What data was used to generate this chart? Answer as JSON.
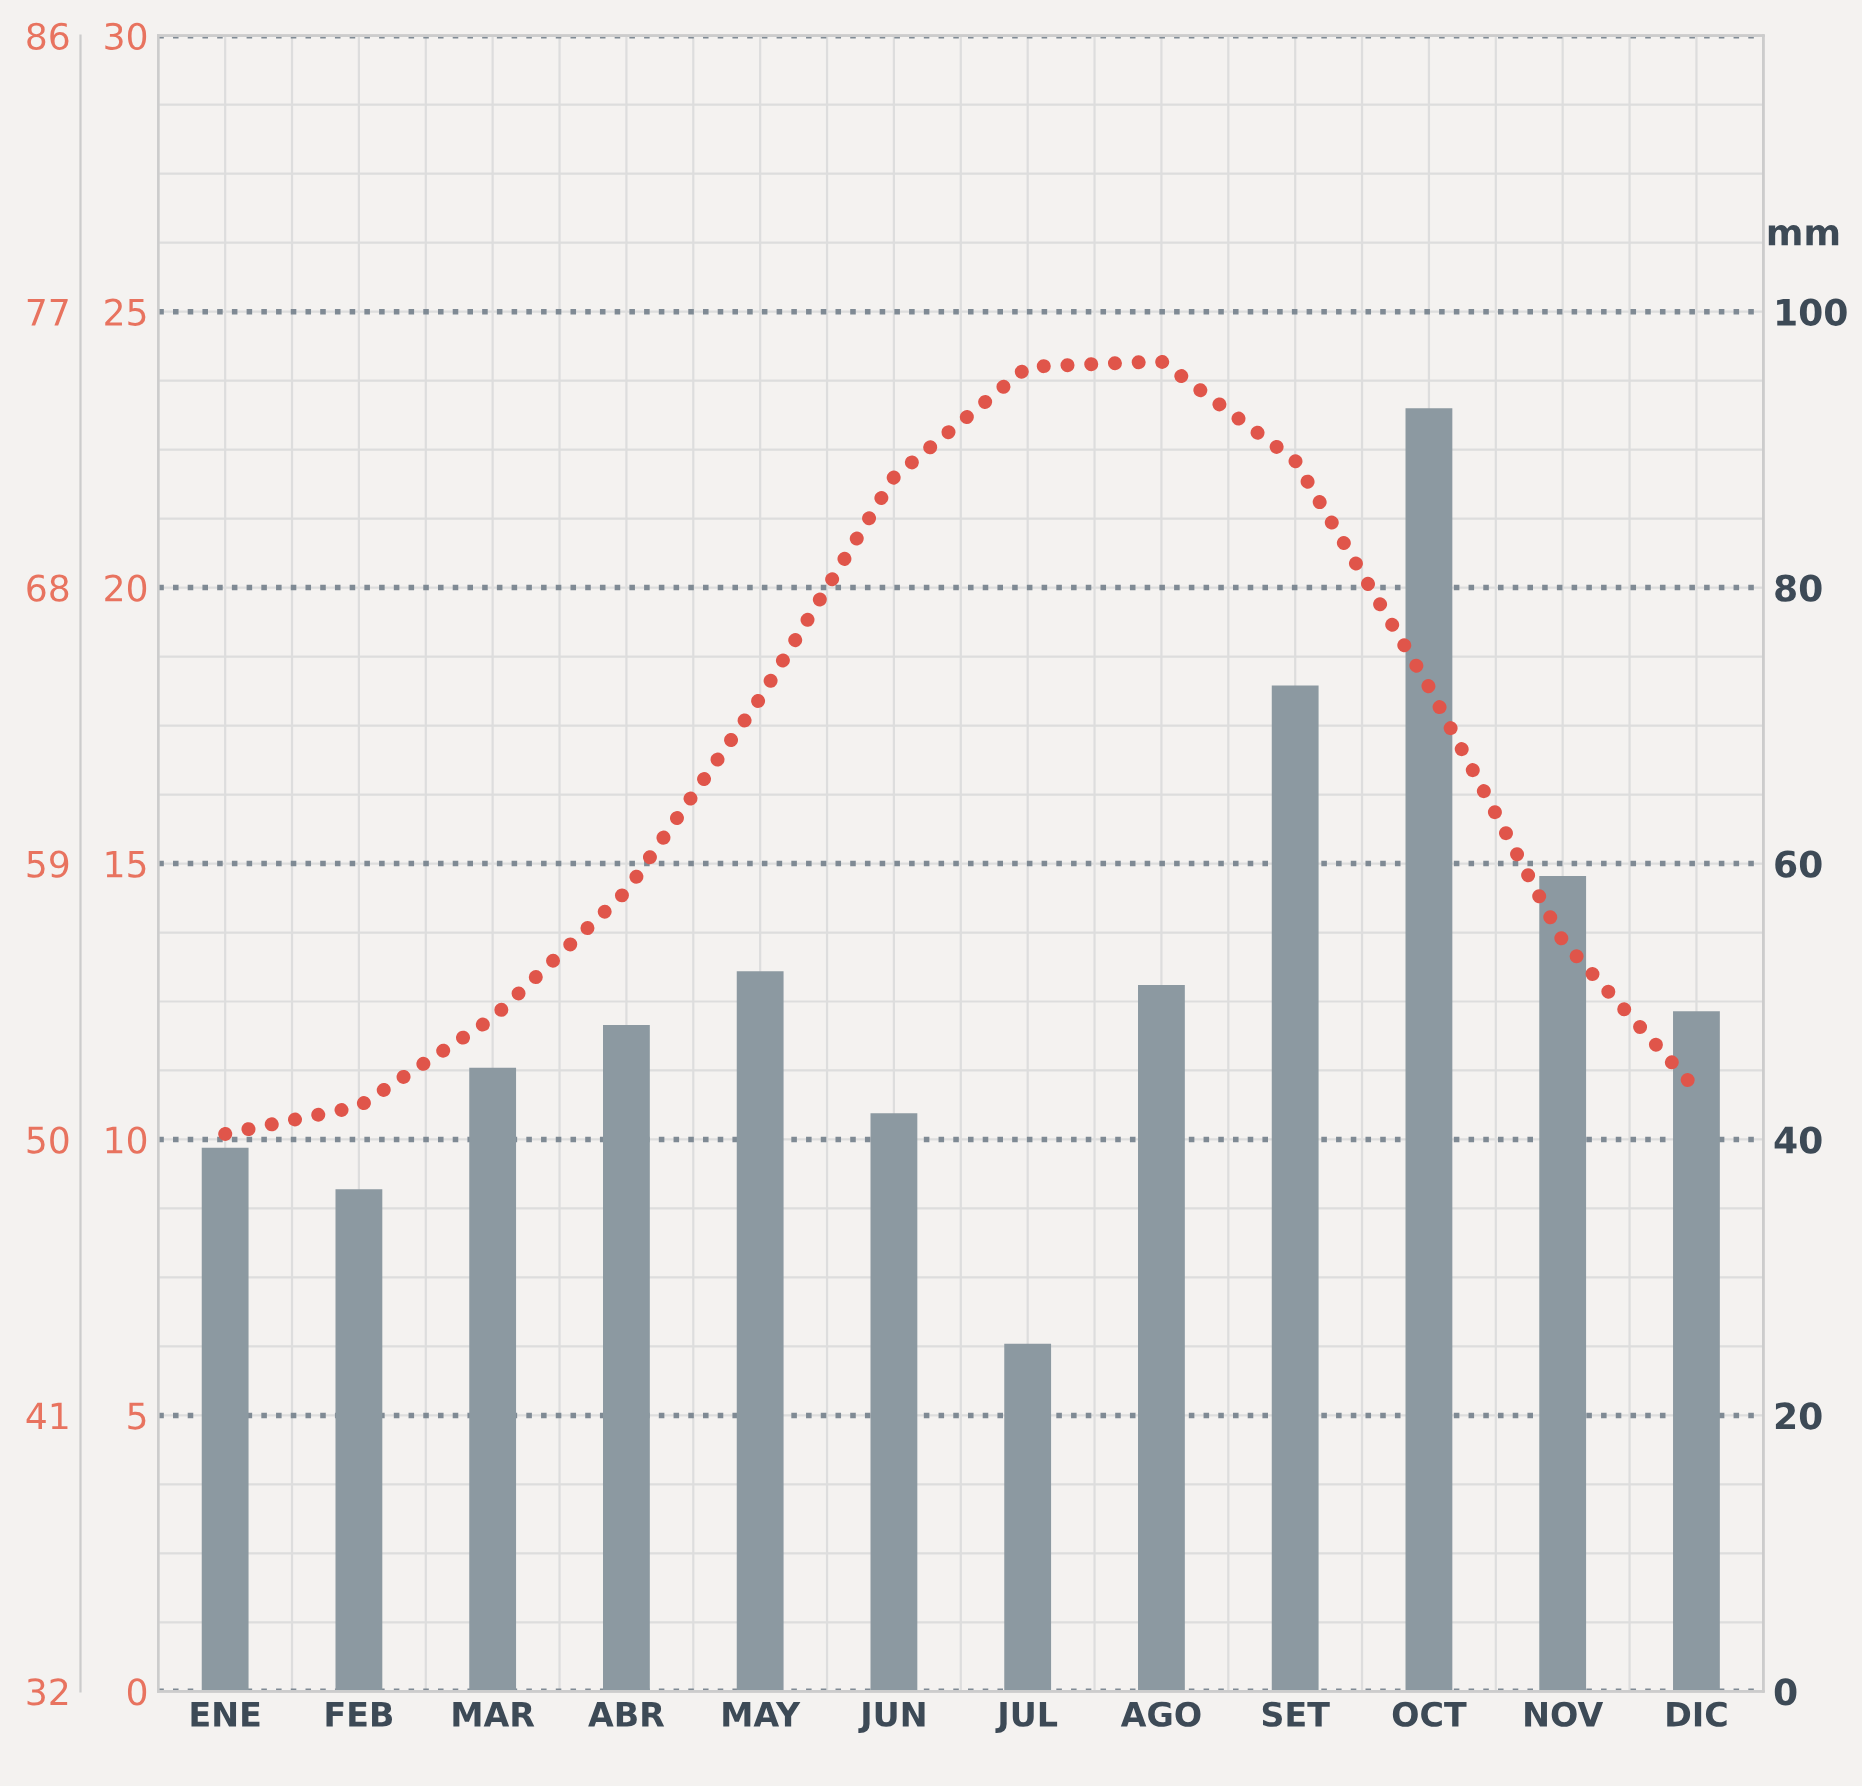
{
  "chart_data": {
    "type": "bar",
    "categories": [
      "ENE",
      "FEB",
      "MAR",
      "ABR",
      "MAY",
      "JUN",
      "JUL",
      "AGO",
      "SET",
      "OCT",
      "NOV",
      "DIC"
    ],
    "series": [
      {
        "axis": "y2",
        "color": "#8c99a1",
        "values": [
          39.4,
          36.4,
          45.2,
          48.3,
          52.2,
          41.9,
          25.2,
          51.2,
          72.9,
          93.0,
          59.1,
          49.3
        ]
      },
      {
        "type": "line",
        "axis": "y",
        "color": "#e0554a",
        "line_style": "dotted",
        "values": [
          10.1,
          10.6,
          12.2,
          14.5,
          18.0,
          22.0,
          24.0,
          24.1,
          22.3,
          18.2,
          13.6,
          10.9
        ]
      }
    ],
    "ylim": [
      0,
      30
    ],
    "yticks": [
      0,
      5,
      10,
      15,
      20,
      25,
      30
    ],
    "y3lim": [
      32,
      86
    ],
    "y3ticks": [
      32,
      41,
      50,
      59,
      68,
      77,
      86
    ],
    "y2lim": [
      0,
      120
    ],
    "y2ticks": [
      0,
      20,
      40,
      60,
      80,
      100
    ],
    "y2label": "mm",
    "grid": true
  }
}
